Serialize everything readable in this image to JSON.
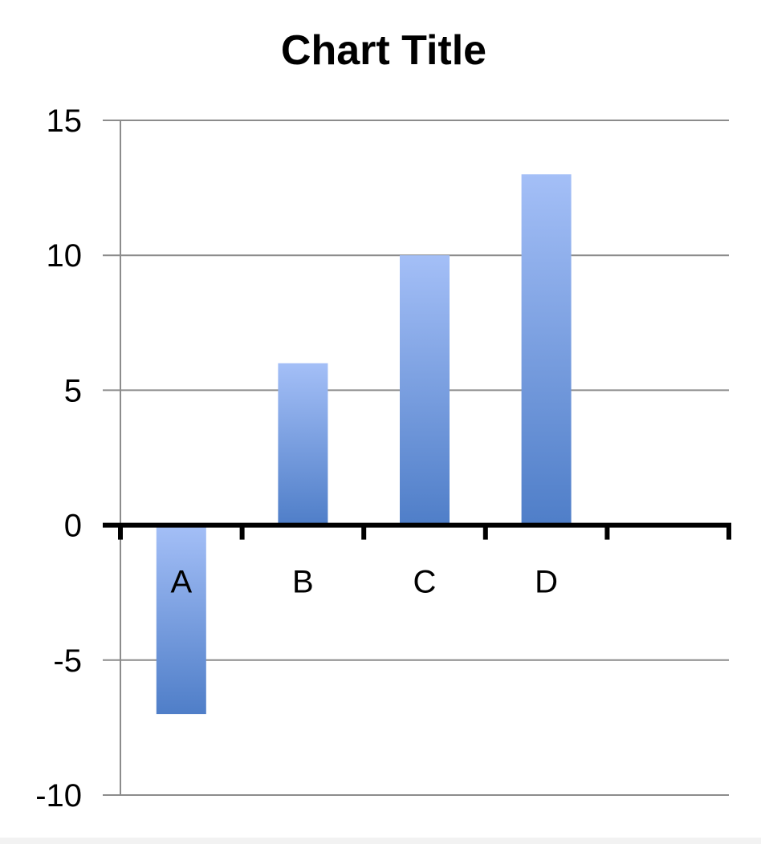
{
  "chart_data": {
    "type": "bar",
    "title": "Chart Title",
    "xlabel": "",
    "ylabel": "",
    "categories": [
      "A",
      "B",
      "C",
      "D",
      ""
    ],
    "values": [
      -7,
      6,
      10,
      13,
      null
    ],
    "ylim": [
      -10,
      15
    ],
    "yticks": [
      "15",
      "10",
      "5",
      "0",
      "-5",
      "-10"
    ],
    "grid": true,
    "legend": "none",
    "colors": {
      "bar_top": "#a4bff7",
      "bar_bottom": "#4f7ec8",
      "grid": "#8c8c8c",
      "axis": "#000000"
    }
  }
}
